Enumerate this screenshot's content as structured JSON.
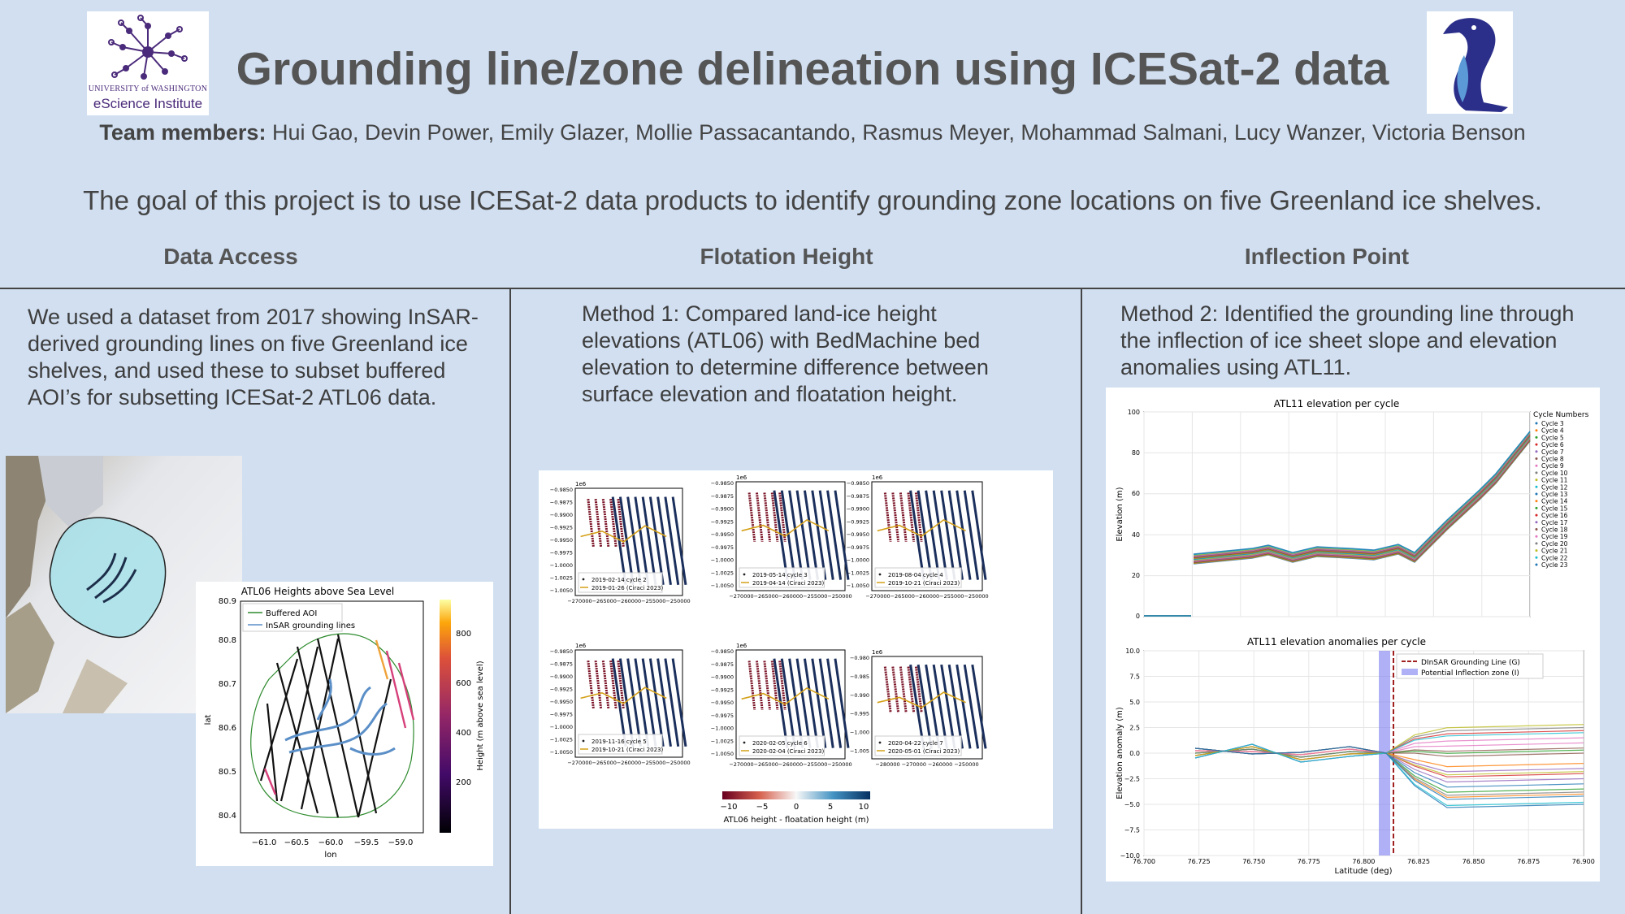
{
  "header": {
    "title": "Grounding line/zone delineation using ICESat-2 data",
    "team_label": "Team members:",
    "team_names": "Hui Gao, Devin Power, Emily Glazer, Mollie Passacantando, Rasmus Meyer, Mohammad Salmani, Lucy Wanzer, Victoria Benson",
    "goal": "The goal of this project is to use ICESat-2 data products to identify grounding zone locations on five Greenland ice shelves.",
    "logo_line1": "UNIVERSITY of WASHINGTON",
    "logo_line2": "eScience Institute"
  },
  "sections": {
    "data_access": {
      "heading": "Data Access",
      "text": "We used a dataset from 2017 showing InSAR-derived grounding lines on five Greenland ice shelves, and used these to subset buffered AOI’s for subsetting ICESat-2 ATL06  data."
    },
    "flotation": {
      "heading": "Flotation Height",
      "text": "Method 1: Compared land-ice height elevations (ATL06) with BedMachine bed elevation to determine difference between surface elevation and floatation height."
    },
    "inflection": {
      "heading": "Inflection Point",
      "text": "Method 2: Identified the grounding line through the inflection of ice sheet slope and elevation anomalies using ATL11."
    }
  },
  "figures": {
    "atl06_map": {
      "title": "ATL06 Heights above Sea Level",
      "xlabel": "lon",
      "ylabel": "lat",
      "xticks": [
        "−61.0",
        "−60.5",
        "−60.0",
        "−59.5",
        "−59.0"
      ],
      "yticks": [
        "80.9",
        "80.8",
        "80.7",
        "80.6",
        "80.5",
        "80.4"
      ],
      "legend": [
        "Buffered AOI",
        "InSAR grounding lines"
      ],
      "colorbar_label": "Height (m above sea level)",
      "colorbar_ticks": [
        "800",
        "600",
        "400",
        "200"
      ]
    },
    "flotation_grid": {
      "panels": [
        {
          "legend1": "2019-02-14 cycle 2",
          "legend2": "2019-01-26 (Ciraci 2023)"
        },
        {
          "legend1": "2019-05-14 cycle 3",
          "legend2": "2019-04-14 (Ciraci 2023)"
        },
        {
          "legend1": "2019-08-04 cycle 4",
          "legend2": "2019-10-21 (Ciraci 2023)"
        },
        {
          "legend1": "2019-11-16 cycle 5",
          "legend2": "2019-10-21 (Ciraci 2023)"
        },
        {
          "legend1": "2020-02-05 cycle 6",
          "legend2": "2020-02-04 (Ciraci 2023)"
        },
        {
          "legend1": "2020-04-22 cycle 7",
          "legend2": "2020-05-01 (Ciraci 2023)"
        }
      ],
      "yticks_a": [
        "−0.9850",
        "−0.9875",
        "−0.9900",
        "−0.9925",
        "−0.9950",
        "−0.9975",
        "−1.0000",
        "−1.0025",
        "−1.0050"
      ],
      "yticks_b": [
        "−0.980",
        "−0.985",
        "−0.990",
        "−0.995",
        "−1.000",
        "−1.005"
      ],
      "xticks_a": "−270000−265000−260000−255000−250000",
      "xticks_b": "−280000   −270000   −260000   −250000",
      "exp": "1e6",
      "colorbar_ticks": [
        "−10",
        "−5",
        "0",
        "5",
        "10"
      ],
      "colorbar_label": "ATL06 height - floatation height (m)"
    },
    "atl11_elev": {
      "title": "ATL11 elevation per cycle",
      "ylabel": "Elevation (m)",
      "yticks": [
        "100",
        "80",
        "60",
        "40",
        "20",
        "0"
      ],
      "legend_title": "Cycle Numbers",
      "cycles": [
        "Cycle 3",
        "Cycle 4",
        "Cycle 5",
        "Cycle 6",
        "Cycle 7",
        "Cycle 8",
        "Cycle 9",
        "Cycle 10",
        "Cycle 11",
        "Cycle 12",
        "Cycle 13",
        "Cycle 14",
        "Cycle 15",
        "Cycle 16",
        "Cycle 17",
        "Cycle 18",
        "Cycle 19",
        "Cycle 20",
        "Cycle 21",
        "Cycle 22",
        "Cycle 23"
      ],
      "cycle_colors": [
        "#1f77b4",
        "#ff7f0e",
        "#2ca02c",
        "#d62728",
        "#9467bd",
        "#8c564b",
        "#e377c2",
        "#7f7f7f",
        "#bcbd22",
        "#17becf",
        "#1f77b4",
        "#ff7f0e",
        "#2ca02c",
        "#d62728",
        "#9467bd",
        "#8c564b",
        "#e377c2",
        "#7f7f7f",
        "#bcbd22",
        "#17becf",
        "#1f77b4"
      ]
    },
    "atl11_anom": {
      "title": "ATL11 elevation anomalies per cycle",
      "ylabel": "Elevation anomaly (m)",
      "xlabel": "Latitude (deg)",
      "yticks": [
        "10.0",
        "7.5",
        "5.0",
        "2.5",
        "0.0",
        "−2.5",
        "−5.0",
        "−7.5",
        "−10.0"
      ],
      "xticks": [
        "76.700",
        "76.725",
        "76.750",
        "76.775",
        "76.800",
        "76.825",
        "76.850",
        "76.875",
        "76.900"
      ],
      "legend": [
        "DInSAR Grounding Line (G)",
        "Potential Inflection zone (I)"
      ]
    }
  }
}
